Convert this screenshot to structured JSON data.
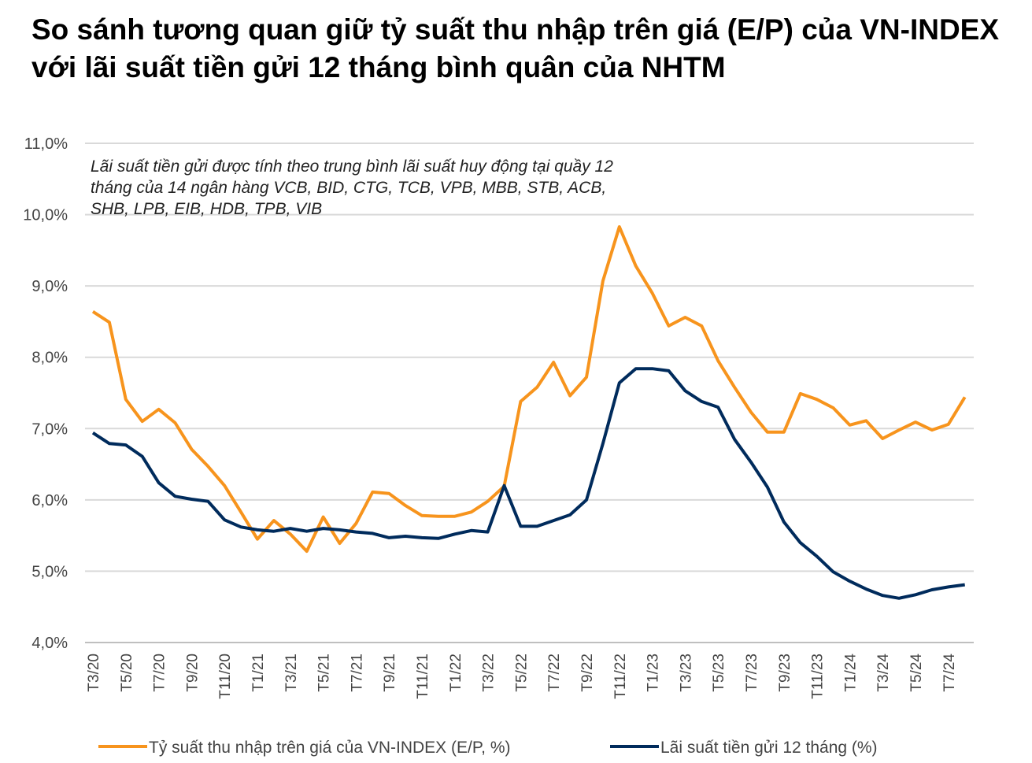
{
  "chart_data": {
    "type": "line",
    "title": "So sánh tương quan giữ tỷ suất thu nhập trên giá (E/P) của VN-INDEX với lãi suất tiền gửi 12 tháng bình quân của NHTM",
    "annotation": [
      "Lãi suất tiền gửi được tính theo trung bình lãi suất huy động tại quầy 12",
      "tháng của 14 ngân hàng VCB, BID, CTG, TCB, VPB, MBB, STB, ACB,",
      "SHB, LPB, EIB, HDB, TPB, VIB"
    ],
    "xlabel": "",
    "ylabel": "",
    "ylim": [
      4.0,
      11.0
    ],
    "yticks": [
      "4,0%",
      "5,0%",
      "6,0%",
      "7,0%",
      "8,0%",
      "9,0%",
      "10,0%",
      "11,0%"
    ],
    "grid": true,
    "legend_position": "bottom",
    "categories": [
      "T3/20",
      "T4/20",
      "T5/20",
      "T6/20",
      "T7/20",
      "T8/20",
      "T9/20",
      "T10/20",
      "T11/20",
      "T12/20",
      "T1/21",
      "T2/21",
      "T3/21",
      "T4/21",
      "T5/21",
      "T6/21",
      "T7/21",
      "T8/21",
      "T9/21",
      "T10/21",
      "T11/21",
      "T12/21",
      "T1/22",
      "T2/22",
      "T3/22",
      "T4/22",
      "T5/22",
      "T6/22",
      "T7/22",
      "T8/22",
      "T9/22",
      "T10/22",
      "T11/22",
      "T12/22",
      "T1/23",
      "T2/23",
      "T3/23",
      "T4/23",
      "T5/23",
      "T6/23",
      "T7/23",
      "T8/23",
      "T9/23",
      "T10/23",
      "T11/23",
      "T12/23",
      "T1/24",
      "T2/24",
      "T3/24",
      "T4/24",
      "T5/24",
      "T6/24",
      "T7/24",
      "T8/24"
    ],
    "series": [
      {
        "name": "Tỷ suất thu nhập trên giá của VN-INDEX (E/P, %)",
        "color": "#F7941D",
        "values": [
          8.64,
          8.49,
          7.41,
          7.1,
          7.27,
          7.08,
          6.71,
          6.47,
          6.2,
          5.83,
          5.45,
          5.71,
          5.52,
          5.28,
          5.76,
          5.39,
          5.67,
          6.11,
          6.09,
          5.92,
          5.78,
          5.77,
          5.77,
          5.83,
          5.98,
          6.19,
          7.38,
          7.58,
          7.93,
          7.46,
          7.72,
          9.07,
          9.83,
          9.28,
          8.9,
          8.44,
          8.56,
          8.44,
          7.95,
          7.58,
          7.23,
          6.95,
          6.95,
          7.49,
          7.41,
          7.29,
          7.05,
          7.11,
          6.86,
          6.98,
          7.09,
          6.98,
          7.06,
          7.44
        ]
      },
      {
        "name": "Lãi suất tiền gửi 12 tháng (%)",
        "color": "#002B5C",
        "values": [
          6.94,
          6.79,
          6.77,
          6.61,
          6.24,
          6.05,
          6.01,
          5.98,
          5.72,
          5.62,
          5.58,
          5.56,
          5.6,
          5.56,
          5.6,
          5.58,
          5.55,
          5.53,
          5.47,
          5.49,
          5.47,
          5.46,
          5.52,
          5.57,
          5.55,
          6.2,
          5.63,
          5.63,
          5.71,
          5.79,
          6.0,
          6.79,
          7.64,
          7.84,
          7.84,
          7.81,
          7.53,
          7.38,
          7.3,
          6.85,
          6.53,
          6.18,
          5.69,
          5.4,
          5.21,
          4.99,
          4.86,
          4.75,
          4.66,
          4.62,
          4.67,
          4.74,
          4.78,
          4.81
        ]
      }
    ]
  }
}
